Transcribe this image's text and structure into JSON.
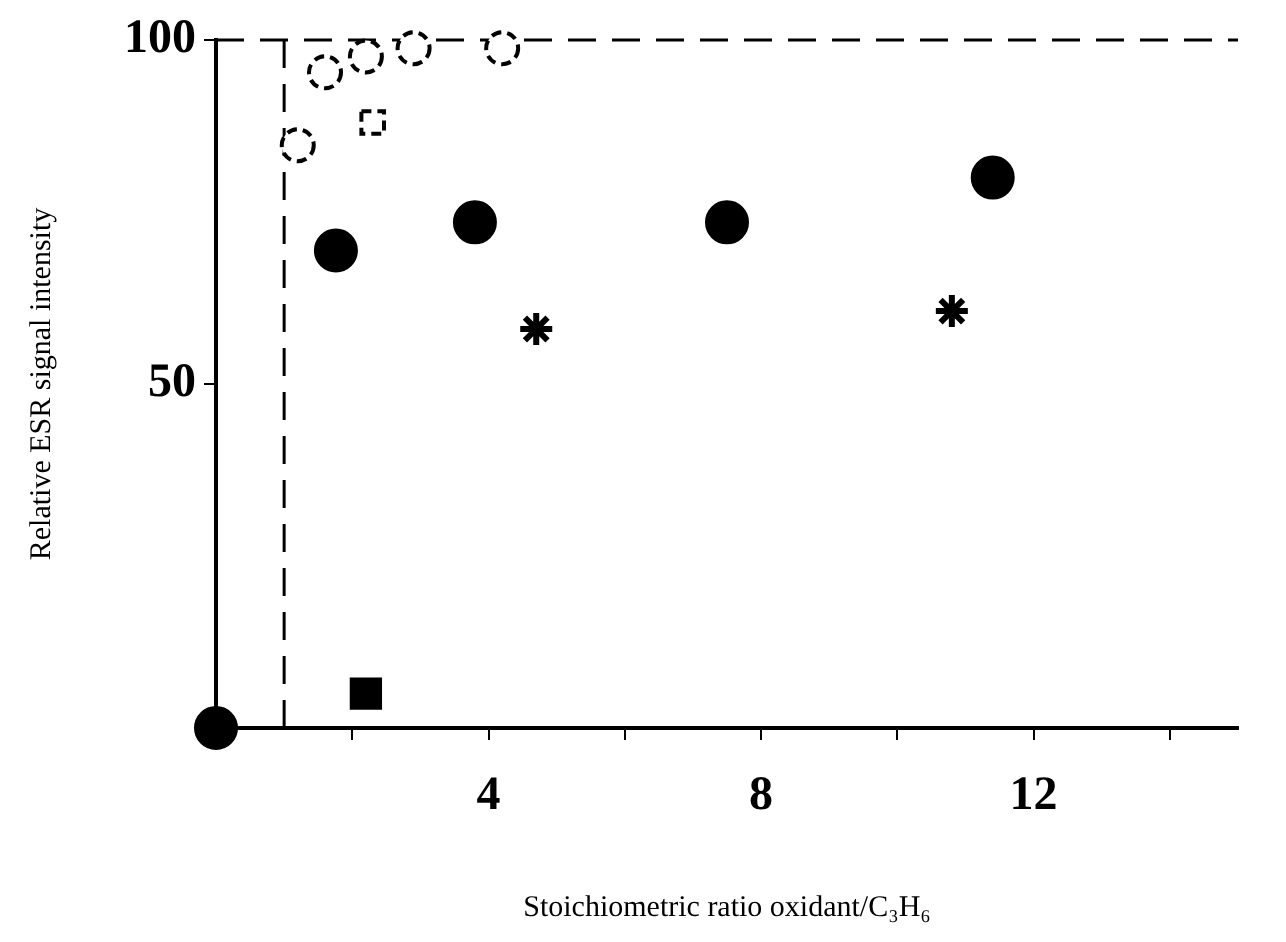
{
  "chart_data": {
    "type": "scatter",
    "xlabel": "Stoichiometric ratio oxidant/C₃H₆",
    "ylabel": "Relative ESR signal intensity",
    "xlim": [
      0,
      15
    ],
    "ylim": [
      0,
      100
    ],
    "xticks": [
      {
        "value": 2,
        "label": null
      },
      4,
      {
        "value": 6,
        "label": null
      },
      8,
      {
        "value": 10,
        "label": null
      },
      12,
      {
        "value": 14,
        "label": null
      }
    ],
    "yticks": [
      50,
      100
    ],
    "grid": false,
    "legend": false,
    "series": [
      {
        "color": "#000000",
        "marker": "circle",
        "line_style": "solid",
        "x": [
          0,
          1.76,
          3.8,
          7.5,
          11.4
        ],
        "values": [
          0,
          69.4,
          73.5,
          73.5,
          80
        ]
      },
      {
        "color": "#000000",
        "marker": "circle",
        "line_style": "dashed",
        "x": [
          1.2,
          1.6,
          2.2,
          2.9,
          4.2
        ],
        "values": [
          84.7,
          95.3,
          97.6,
          98.8,
          98.8
        ]
      },
      {
        "color": "#000000",
        "marker": "square",
        "line_style": "dashed",
        "x": [
          2.3
        ],
        "values": [
          88
        ]
      },
      {
        "color": "#000000",
        "marker": "square",
        "line_style": "solid",
        "x": [
          2.2
        ],
        "values": [
          5
        ]
      },
      {
        "color": "#000000",
        "marker": "cross",
        "line_style": "solid",
        "x": [
          4.7,
          10.8
        ],
        "values": [
          58,
          60.6
        ]
      }
    ],
    "ref_lines": [
      {
        "axis": "x",
        "value": 1,
        "line_style": "dashed",
        "label": null
      },
      {
        "axis": "y",
        "value": 100,
        "line_style": "dashed",
        "label": null
      }
    ]
  }
}
